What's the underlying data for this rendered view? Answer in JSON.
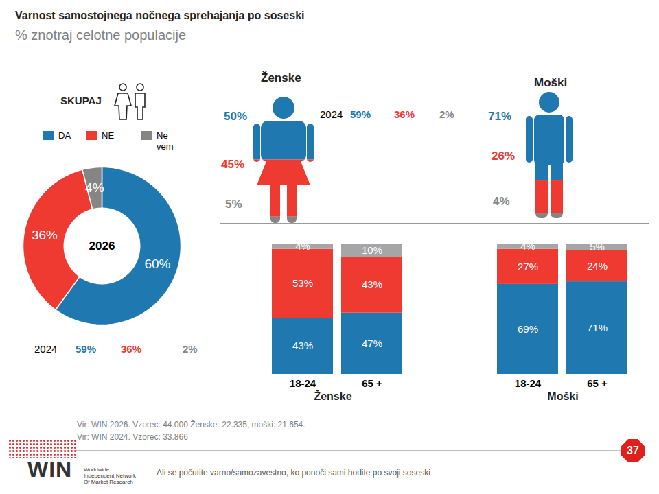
{
  "title": "Varnost samostojnega nočnega sprehajanja po soseski",
  "subtitle": "% znotraj celotne populacije",
  "question": "Ali se počutite varno/samozavestno, ko ponoči sami hodite po svoji soseski",
  "sources": [
    "Vir: WIN 2026.  Vzorec: 44.000 Ženske: 22.335, moški: 21.654.",
    "Vir: WIN 2024.  Vzorec: 33.866"
  ],
  "page_number": "37",
  "logo": {
    "name": "WIN",
    "lines": [
      "Worldwide",
      "Independent Network",
      "Of Market Research"
    ]
  },
  "chart_data": [
    {
      "type": "donut",
      "title": "SKUPAJ",
      "center_label": "2026",
      "categories": [
        "DA",
        "NE",
        "Ne vem"
      ],
      "values": [
        60,
        36,
        4
      ],
      "value_labels": [
        "60%",
        "36%",
        "4%"
      ],
      "colors": [
        "#1f78b0",
        "#ee3a31",
        "#858585"
      ],
      "legend": "top",
      "data_labels": true,
      "comparison": {
        "label": "2024",
        "values": [
          59,
          36,
          2
        ],
        "value_labels": [
          "59%",
          "36%",
          "2%"
        ]
      }
    },
    {
      "type": "pictogram",
      "title": "Ženske",
      "categories": [
        "DA",
        "NE",
        "Ne vem"
      ],
      "values": [
        50,
        45,
        5
      ],
      "value_labels": [
        "50%",
        "45%",
        "5%"
      ],
      "colors": [
        "#1f78b0",
        "#ee3a31",
        "#858585"
      ],
      "data_labels": true,
      "comparison": {
        "label": "2024",
        "values": [
          59,
          36,
          2
        ],
        "value_labels": [
          "59%",
          "36%",
          "2%"
        ]
      }
    },
    {
      "type": "pictogram",
      "title": "Moški",
      "categories": [
        "DA",
        "NE",
        "Ne vem"
      ],
      "values": [
        71,
        26,
        4
      ],
      "value_labels": [
        "71%",
        "26%",
        "4%"
      ],
      "colors": [
        "#1f78b0",
        "#ee3a31",
        "#858585"
      ],
      "data_labels": true
    },
    {
      "type": "bar",
      "title": "Ženske",
      "stacked": true,
      "data_labels": true,
      "tick_labels": "x",
      "categories": [
        "18-24",
        "65 +"
      ],
      "series": [
        {
          "name": "DA",
          "color": "#1f78b0",
          "values": [
            43,
            47
          ],
          "value_labels": [
            "43%",
            "47%"
          ]
        },
        {
          "name": "NE",
          "color": "#ee3a31",
          "values": [
            53,
            43
          ],
          "value_labels": [
            "53%",
            "43%"
          ]
        },
        {
          "name": "Ne vem",
          "color": "#a6a6a6",
          "values": [
            4,
            10
          ],
          "value_labels": [
            "4%",
            "10%"
          ]
        }
      ]
    },
    {
      "type": "bar",
      "title": "Moški",
      "stacked": true,
      "data_labels": true,
      "tick_labels": "x",
      "categories": [
        "18-24",
        "65 +"
      ],
      "series": [
        {
          "name": "DA",
          "color": "#1f78b0",
          "values": [
            69,
            71
          ],
          "value_labels": [
            "69%",
            "71%"
          ]
        },
        {
          "name": "NE",
          "color": "#ee3a31",
          "values": [
            27,
            24
          ],
          "value_labels": [
            "27%",
            "24%"
          ]
        },
        {
          "name": "Ne vem",
          "color": "#a6a6a6",
          "values": [
            4,
            5
          ],
          "value_labels": [
            "4%",
            "5%"
          ]
        }
      ]
    }
  ]
}
